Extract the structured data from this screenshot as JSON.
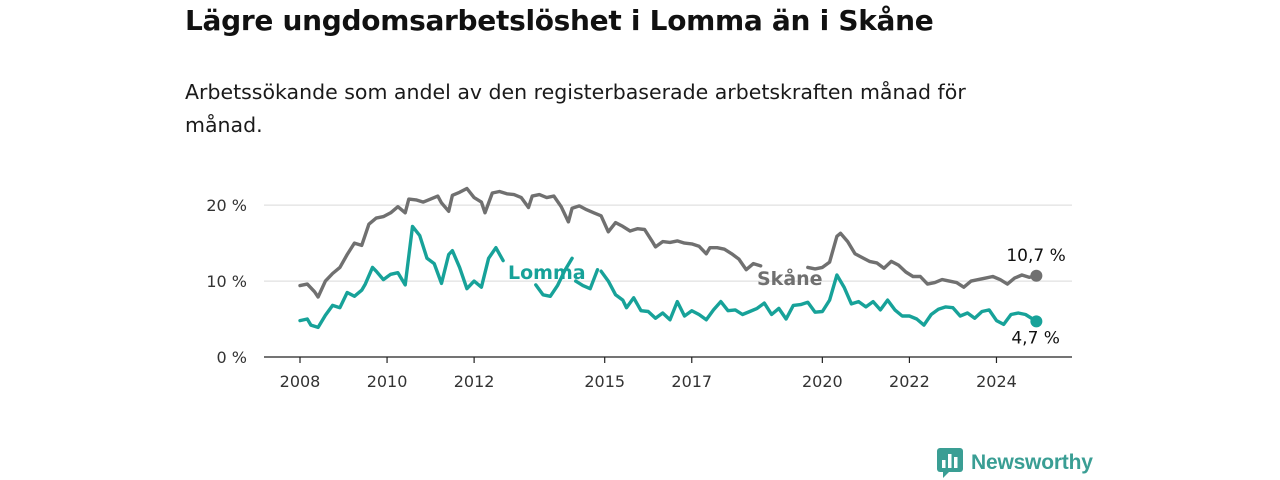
{
  "title": "Lägre ungdomsarbetslöshet i Lomma än i Skåne",
  "subtitle": "Arbetssökande som andel av den registerbaserade arbetskraften månad för månad.",
  "brand": {
    "name": "Newsworthy",
    "icon": "newsworthy-logo-icon",
    "color": "#3a9e94"
  },
  "chart_data": {
    "type": "line",
    "title": "Lägre ungdomsarbetslöshet i Lomma än i Skåne",
    "xlabel": "",
    "ylabel": "",
    "x_range": [
      "2008-01",
      "2025-01"
    ],
    "ylim": [
      0,
      22
    ],
    "y_ticks": [
      {
        "value": 0,
        "label": "0 %"
      },
      {
        "value": 10,
        "label": "10 %"
      },
      {
        "value": 20,
        "label": "20 %"
      }
    ],
    "x_ticks": [
      {
        "value": "2008-01",
        "label": "2008"
      },
      {
        "value": "2010-01",
        "label": "2010"
      },
      {
        "value": "2012-01",
        "label": "2012"
      },
      {
        "value": "2015-01",
        "label": "2015"
      },
      {
        "value": "2017-01",
        "label": "2017"
      },
      {
        "value": "2020-01",
        "label": "2020"
      },
      {
        "value": "2022-01",
        "label": "2022"
      },
      {
        "value": "2024-01",
        "label": "2024"
      }
    ],
    "grid": true,
    "series": [
      {
        "name": "Skåne",
        "color": "#707070",
        "end_label": "10,7 %",
        "points": [
          [
            "2008-01",
            9.4
          ],
          [
            "2008-03",
            9.6
          ],
          [
            "2008-05",
            8.6
          ],
          [
            "2008-06",
            7.9
          ],
          [
            "2008-08",
            10.0
          ],
          [
            "2008-10",
            11.0
          ],
          [
            "2008-12",
            11.8
          ],
          [
            "2009-02",
            13.5
          ],
          [
            "2009-04",
            15.0
          ],
          [
            "2009-06",
            14.7
          ],
          [
            "2009-08",
            17.5
          ],
          [
            "2009-10",
            18.3
          ],
          [
            "2009-12",
            18.5
          ],
          [
            "2010-02",
            19.0
          ],
          [
            "2010-04",
            19.8
          ],
          [
            "2010-06",
            19.0
          ],
          [
            "2010-07",
            20.8
          ],
          [
            "2010-09",
            20.7
          ],
          [
            "2010-11",
            20.4
          ],
          [
            "2011-01",
            20.8
          ],
          [
            "2011-03",
            21.2
          ],
          [
            "2011-04",
            20.3
          ],
          [
            "2011-06",
            19.2
          ],
          [
            "2011-07",
            21.3
          ],
          [
            "2011-09",
            21.7
          ],
          [
            "2011-11",
            22.2
          ],
          [
            "2012-01",
            21.0
          ],
          [
            "2012-03",
            20.4
          ],
          [
            "2012-04",
            19.0
          ],
          [
            "2012-06",
            21.6
          ],
          [
            "2012-08",
            21.8
          ],
          [
            "2012-10",
            21.5
          ],
          [
            "2012-12",
            21.4
          ],
          [
            "2013-02",
            21.0
          ],
          [
            "2013-04",
            19.7
          ],
          [
            "2013-05",
            21.2
          ],
          [
            "2013-07",
            21.4
          ],
          [
            "2013-09",
            21.0
          ],
          [
            "2013-11",
            21.2
          ],
          [
            "2014-01",
            19.8
          ],
          [
            "2014-03",
            17.8
          ],
          [
            "2014-04",
            19.6
          ],
          [
            "2014-06",
            19.9
          ],
          [
            "2014-08",
            19.4
          ],
          [
            "2014-10",
            19.0
          ],
          [
            "2014-12",
            18.6
          ],
          [
            "2015-02",
            16.5
          ],
          [
            "2015-04",
            17.7
          ],
          [
            "2015-06",
            17.2
          ],
          [
            "2015-08",
            16.6
          ],
          [
            "2015-10",
            16.9
          ],
          [
            "2015-12",
            16.8
          ],
          [
            "2016-02",
            15.3
          ],
          [
            "2016-03",
            14.5
          ],
          [
            "2016-05",
            15.2
          ],
          [
            "2016-07",
            15.1
          ],
          [
            "2016-09",
            15.3
          ],
          [
            "2016-11",
            15.0
          ],
          [
            "2017-01",
            14.9
          ],
          [
            "2017-03",
            14.6
          ],
          [
            "2017-05",
            13.6
          ],
          [
            "2017-06",
            14.4
          ],
          [
            "2017-08",
            14.4
          ],
          [
            "2017-10",
            14.2
          ],
          [
            "2017-12",
            13.6
          ],
          [
            "2018-02",
            12.9
          ],
          [
            "2018-04",
            11.5
          ],
          [
            "2018-06",
            12.3
          ],
          [
            "2018-08",
            12.0
          ]
        ],
        "points_after_label": [
          [
            "2019-09",
            11.8
          ],
          [
            "2019-11",
            11.6
          ],
          [
            "2020-01",
            11.8
          ],
          [
            "2020-03",
            12.5
          ],
          [
            "2020-05",
            15.9
          ],
          [
            "2020-06",
            16.3
          ],
          [
            "2020-08",
            15.2
          ],
          [
            "2020-10",
            13.6
          ],
          [
            "2020-12",
            13.1
          ],
          [
            "2021-02",
            12.6
          ],
          [
            "2021-04",
            12.4
          ],
          [
            "2021-06",
            11.7
          ],
          [
            "2021-08",
            12.6
          ],
          [
            "2021-10",
            12.1
          ],
          [
            "2021-12",
            11.2
          ],
          [
            "2022-02",
            10.6
          ],
          [
            "2022-04",
            10.6
          ],
          [
            "2022-06",
            9.6
          ],
          [
            "2022-08",
            9.8
          ],
          [
            "2022-10",
            10.2
          ],
          [
            "2022-12",
            10.0
          ],
          [
            "2023-02",
            9.8
          ],
          [
            "2023-04",
            9.2
          ],
          [
            "2023-06",
            10.0
          ],
          [
            "2023-08",
            10.2
          ],
          [
            "2023-10",
            10.4
          ],
          [
            "2023-12",
            10.6
          ],
          [
            "2024-02",
            10.2
          ],
          [
            "2024-04",
            9.6
          ],
          [
            "2024-06",
            10.4
          ],
          [
            "2024-08",
            10.8
          ],
          [
            "2024-10",
            10.5
          ],
          [
            "2024-12",
            10.7
          ]
        ]
      },
      {
        "name": "Lomma",
        "color": "#17a299",
        "end_label": "4,7 %",
        "points": [
          [
            "2008-01",
            4.8
          ],
          [
            "2008-03",
            5.0
          ],
          [
            "2008-04",
            4.2
          ],
          [
            "2008-06",
            3.9
          ],
          [
            "2008-08",
            5.5
          ],
          [
            "2008-10",
            6.8
          ],
          [
            "2008-12",
            6.5
          ],
          [
            "2009-02",
            8.5
          ],
          [
            "2009-04",
            8.0
          ],
          [
            "2009-06",
            8.8
          ],
          [
            "2009-07",
            9.6
          ],
          [
            "2009-09",
            11.8
          ],
          [
            "2009-10",
            11.3
          ],
          [
            "2009-12",
            10.2
          ],
          [
            "2010-02",
            10.9
          ],
          [
            "2010-04",
            11.1
          ],
          [
            "2010-06",
            9.5
          ],
          [
            "2010-08",
            17.2
          ],
          [
            "2010-10",
            16.0
          ],
          [
            "2010-12",
            13.0
          ],
          [
            "2011-02",
            12.3
          ],
          [
            "2011-04",
            9.7
          ],
          [
            "2011-06",
            13.5
          ],
          [
            "2011-07",
            14.0
          ],
          [
            "2011-09",
            11.8
          ],
          [
            "2011-11",
            9.0
          ],
          [
            "2012-01",
            10.0
          ],
          [
            "2012-03",
            9.2
          ],
          [
            "2012-05",
            13.0
          ],
          [
            "2012-07",
            14.4
          ],
          [
            "2012-09",
            12.7
          ]
        ],
        "points_mid": [
          [
            "2013-06",
            9.5
          ],
          [
            "2013-08",
            8.2
          ],
          [
            "2013-10",
            8.0
          ],
          [
            "2013-12",
            9.4
          ],
          [
            "2014-02",
            11.4
          ],
          [
            "2014-04",
            13.0
          ]
        ],
        "points_mid2": [
          [
            "2014-05",
            10.0
          ],
          [
            "2014-07",
            9.4
          ],
          [
            "2014-09",
            9.0
          ],
          [
            "2014-11",
            11.5
          ]
        ],
        "points_late": [
          [
            "2014-12",
            11.3
          ],
          [
            "2015-02",
            10.0
          ],
          [
            "2015-04",
            8.2
          ],
          [
            "2015-06",
            7.5
          ],
          [
            "2015-07",
            6.5
          ],
          [
            "2015-09",
            7.8
          ],
          [
            "2015-11",
            6.1
          ],
          [
            "2016-01",
            6.0
          ],
          [
            "2016-03",
            5.1
          ],
          [
            "2016-05",
            5.8
          ],
          [
            "2016-07",
            4.9
          ],
          [
            "2016-09",
            7.3
          ],
          [
            "2016-11",
            5.4
          ],
          [
            "2017-01",
            6.1
          ],
          [
            "2017-03",
            5.6
          ],
          [
            "2017-05",
            4.9
          ],
          [
            "2017-07",
            6.2
          ],
          [
            "2017-09",
            7.3
          ],
          [
            "2017-11",
            6.1
          ],
          [
            "2018-01",
            6.2
          ],
          [
            "2018-03",
            5.6
          ],
          [
            "2018-05",
            6.0
          ],
          [
            "2018-07",
            6.4
          ],
          [
            "2018-09",
            7.1
          ],
          [
            "2018-11",
            5.6
          ],
          [
            "2019-01",
            6.4
          ],
          [
            "2019-03",
            5.0
          ],
          [
            "2019-05",
            6.8
          ],
          [
            "2019-07",
            6.9
          ],
          [
            "2019-09",
            7.2
          ],
          [
            "2019-11",
            5.9
          ],
          [
            "2020-01",
            6.0
          ],
          [
            "2020-03",
            7.5
          ],
          [
            "2020-05",
            10.8
          ],
          [
            "2020-07",
            9.2
          ],
          [
            "2020-09",
            7.0
          ],
          [
            "2020-11",
            7.3
          ],
          [
            "2021-01",
            6.6
          ],
          [
            "2021-03",
            7.3
          ],
          [
            "2021-05",
            6.2
          ],
          [
            "2021-07",
            7.5
          ],
          [
            "2021-09",
            6.2
          ],
          [
            "2021-11",
            5.4
          ],
          [
            "2022-01",
            5.4
          ],
          [
            "2022-03",
            5.0
          ],
          [
            "2022-05",
            4.2
          ],
          [
            "2022-07",
            5.6
          ],
          [
            "2022-09",
            6.3
          ],
          [
            "2022-11",
            6.6
          ],
          [
            "2023-01",
            6.5
          ],
          [
            "2023-03",
            5.4
          ],
          [
            "2023-05",
            5.8
          ],
          [
            "2023-07",
            5.1
          ],
          [
            "2023-09",
            6.0
          ],
          [
            "2023-11",
            6.2
          ],
          [
            "2024-01",
            4.8
          ],
          [
            "2024-03",
            4.3
          ],
          [
            "2024-05",
            5.6
          ],
          [
            "2024-07",
            5.8
          ],
          [
            "2024-09",
            5.6
          ],
          [
            "2024-11",
            5.0
          ],
          [
            "2024-12",
            4.7
          ]
        ]
      }
    ]
  }
}
